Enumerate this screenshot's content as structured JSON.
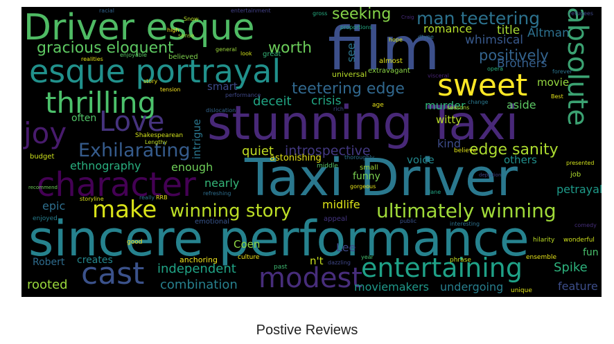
{
  "caption": "Postive Reviews",
  "words": [
    {
      "text": "Driver esque",
      "color": "#4fbb64"
    },
    {
      "text": "film",
      "color": "#3c4f8a"
    },
    {
      "text": "esque portrayal",
      "color": "#21918c"
    },
    {
      "text": "stunning Taxi",
      "color": "#482878"
    },
    {
      "text": "Taxi Driver",
      "color": "#2a788e"
    },
    {
      "text": "sincere performance",
      "color": "#26828e"
    },
    {
      "text": "sweet",
      "color": "#fde725"
    },
    {
      "text": "absolute",
      "color": "#3ba272"
    },
    {
      "text": "character",
      "color": "#440154"
    },
    {
      "text": "thrilling",
      "color": "#4cc16b"
    },
    {
      "text": "Love",
      "color": "#46337e"
    },
    {
      "text": "joy",
      "color": "#481b6d"
    },
    {
      "text": "cast",
      "color": "#3b528b"
    },
    {
      "text": "modest",
      "color": "#472d7b"
    },
    {
      "text": "entertaining",
      "color": "#1fa187"
    },
    {
      "text": "make",
      "color": "#d8e219"
    },
    {
      "text": "winning story",
      "color": "#bddf26"
    },
    {
      "text": "ultimately winning",
      "color": "#a0da39"
    },
    {
      "text": "Exhilarating",
      "color": "#365c8d"
    },
    {
      "text": "gracious eloquent",
      "color": "#5ec962"
    },
    {
      "text": "man teetering",
      "color": "#2c728e"
    },
    {
      "text": "teetering edge",
      "color": "#31688e"
    },
    {
      "text": "seeking",
      "color": "#86d549"
    },
    {
      "text": "worth",
      "color": "#6ccd5a"
    },
    {
      "text": "positively",
      "color": "#33638d"
    },
    {
      "text": "romance",
      "color": "#b5de2b"
    },
    {
      "text": "title",
      "color": "#a8db34"
    },
    {
      "text": "Altman",
      "color": "#2d708e"
    },
    {
      "text": "whimsical",
      "color": "#38598c"
    },
    {
      "text": "Brothers",
      "color": "#355f8d"
    },
    {
      "text": "edge sanity",
      "color": "#addc30"
    },
    {
      "text": "introspective",
      "color": "#443983"
    },
    {
      "text": "quiet",
      "color": "#c2df23"
    },
    {
      "text": "deceit",
      "color": "#21a685"
    },
    {
      "text": "crisis",
      "color": "#22a884"
    },
    {
      "text": "murder",
      "color": "#32b67a"
    },
    {
      "text": "witty",
      "color": "#bade28"
    },
    {
      "text": "kind",
      "color": "#3e4c8a"
    },
    {
      "text": "aside",
      "color": "#5cc863"
    },
    {
      "text": "movie",
      "color": "#95d840"
    },
    {
      "text": "smart",
      "color": "#3e4a89"
    },
    {
      "text": "intrigue",
      "color": "#2a768e"
    },
    {
      "text": "often",
      "color": "#52c569"
    },
    {
      "text": "nearly",
      "color": "#35b779"
    },
    {
      "text": "enough",
      "color": "#6ece58"
    },
    {
      "text": "ethnography",
      "color": "#29af7f"
    },
    {
      "text": "astonishing",
      "color": "#e5e419"
    },
    {
      "text": "voice",
      "color": "#23888e"
    },
    {
      "text": "others",
      "color": "#21908d"
    },
    {
      "text": "petrayal",
      "color": "#1e9b8a"
    },
    {
      "text": "funny",
      "color": "#7ad151"
    },
    {
      "text": "midlife",
      "color": "#dde318"
    },
    {
      "text": "epic",
      "color": "#2e6f8e"
    },
    {
      "text": "Coen",
      "color": "#90d743"
    },
    {
      "text": "Lee",
      "color": "#3e4989"
    },
    {
      "text": "n't",
      "color": "#cae11f"
    },
    {
      "text": "Robert",
      "color": "#2f6c8e"
    },
    {
      "text": "creates",
      "color": "#24878e"
    },
    {
      "text": "independent",
      "color": "#20a486"
    },
    {
      "text": "combination",
      "color": "#27808e"
    },
    {
      "text": "rooted",
      "color": "#9bd93c"
    },
    {
      "text": "moviemakers",
      "color": "#1f998a"
    },
    {
      "text": "undergoing",
      "color": "#277f8e"
    },
    {
      "text": "Spike",
      "color": "#2db27d"
    },
    {
      "text": "feature",
      "color": "#3d4e8a"
    },
    {
      "text": "fun",
      "color": "#4ac16d"
    },
    {
      "text": "anchoring",
      "color": "#f1e51d"
    },
    {
      "text": "universal",
      "color": "#b8de29"
    },
    {
      "text": "extravagant",
      "color": "#8bd646"
    },
    {
      "text": "almost",
      "color": "#dfe318"
    },
    {
      "text": "see",
      "color": "#2b758e"
    },
    {
      "text": "Shakespearean",
      "color": "#d2e21b"
    },
    {
      "text": "budget",
      "color": "#cde11d"
    },
    {
      "text": "enjoyed",
      "color": "#277e8e"
    },
    {
      "text": "good",
      "color": "#f8e621"
    },
    {
      "text": "appeal",
      "color": "#453581"
    },
    {
      "text": "small",
      "color": "#a2da37"
    },
    {
      "text": "middle",
      "color": "#56c667"
    },
    {
      "text": "job",
      "color": "#b0dd2f"
    },
    {
      "text": "great",
      "color": "#35b779"
    },
    {
      "text": "believe",
      "color": "#e2e418"
    },
    {
      "text": "believed",
      "color": "#7fd34e"
    },
    {
      "text": "emotional",
      "color": "#39568c"
    },
    {
      "text": "wonderful",
      "color": "#d0e11c"
    },
    {
      "text": "hilarity",
      "color": "#bfdf25"
    },
    {
      "text": "ensemble",
      "color": "#e7e419"
    },
    {
      "text": "phrase",
      "color": "#c5e021"
    },
    {
      "text": "past",
      "color": "#3fbc73"
    },
    {
      "text": "culture",
      "color": "#efe51c"
    },
    {
      "text": "dazzling",
      "color": "#3f4788"
    },
    {
      "text": "unique",
      "color": "#e1e418"
    },
    {
      "text": "storyline",
      "color": "#dae319"
    },
    {
      "text": "RRB",
      "color": "#eae51a"
    },
    {
      "text": "refreshing",
      "color": "#2e6e8e"
    },
    {
      "text": "racial",
      "color": "#33638d"
    },
    {
      "text": "entertainment",
      "color": "#424086"
    },
    {
      "text": "refugees",
      "color": "#3e4989"
    },
    {
      "text": "proportions",
      "color": "#24aa83"
    },
    {
      "text": "hope",
      "color": "#d5e21a"
    },
    {
      "text": "dtype",
      "color": "#2e6e8e"
    },
    {
      "text": "opera",
      "color": "#2ab07f"
    },
    {
      "text": "forever",
      "color": "#2b748e"
    },
    {
      "text": "Best",
      "color": "#e4e419"
    },
    {
      "text": "change",
      "color": "#2a788e"
    },
    {
      "text": "presented",
      "color": "#d1e21b"
    },
    {
      "text": "comedy",
      "color": "#472f7d"
    },
    {
      "text": "thoroughly",
      "color": "#2c718e"
    },
    {
      "text": "gorgeous",
      "color": "#e7e419"
    },
    {
      "text": "interesting",
      "color": "#2c738e"
    },
    {
      "text": "public",
      "color": "#3a548c"
    },
    {
      "text": "year",
      "color": "#46c06f"
    },
    {
      "text": "look",
      "color": "#d2e21b"
    },
    {
      "text": "sense",
      "color": "#a5db36"
    },
    {
      "text": "high",
      "color": "#f6e620"
    },
    {
      "text": "general",
      "color": "#9dd93b"
    },
    {
      "text": "realities",
      "color": "#e3e418"
    },
    {
      "text": "enjoyable",
      "color": "#5ac864"
    },
    {
      "text": "tension",
      "color": "#f8e621"
    },
    {
      "text": "dislocation",
      "color": "#33638d"
    },
    {
      "text": "performance",
      "color": "#3f4889"
    },
    {
      "text": "age",
      "color": "#e8e419"
    },
    {
      "text": "rich",
      "color": "#3e4a89"
    },
    {
      "text": "visceral",
      "color": "#482475"
    },
    {
      "text": "seasons",
      "color": "#b2dd2d"
    },
    {
      "text": "story",
      "color": "#e7e419"
    },
    {
      "text": "Lengthy",
      "color": "#c0df25"
    },
    {
      "text": "recommend",
      "color": "#6ece58"
    },
    {
      "text": "gross",
      "color": "#26ad81"
    },
    {
      "text": "Snow",
      "color": "#bade28"
    },
    {
      "text": "really",
      "color": "#2c728e"
    },
    {
      "text": "Craig",
      "color": "#472a7a"
    },
    {
      "text": "depiction",
      "color": "#3f4788"
    },
    {
      "text": "lane",
      "color": "#22a785"
    }
  ]
}
